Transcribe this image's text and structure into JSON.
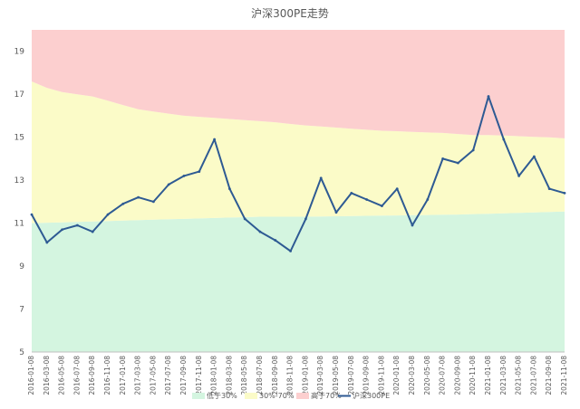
{
  "chart_data": {
    "type": "area",
    "title": "沪深300PE走势",
    "xlabel": "",
    "ylabel": "",
    "ylim": [
      5,
      20
    ],
    "yticks": [
      5,
      7,
      9,
      11,
      13,
      15,
      17,
      19
    ],
    "grid": false,
    "legend_position": "bottom",
    "x_labels": [
      "2016-01-08",
      "2016-03-08",
      "2016-05-08",
      "2016-07-08",
      "2016-09-08",
      "2016-11-08",
      "2017-01-08",
      "2017-03-08",
      "2017-05-08",
      "2017-07-08",
      "2017-09-08",
      "2017-11-08",
      "2018-01-08",
      "2018-03-08",
      "2018-05-08",
      "2018-07-08",
      "2018-09-08",
      "2018-11-08",
      "2019-01-08",
      "2019-03-08",
      "2019-05-08",
      "2019-07-08",
      "2019-09-08",
      "2019-11-08",
      "2020-01-08",
      "2020-03-08",
      "2020-05-08",
      "2020-07-08",
      "2020-09-08",
      "2020-11-08",
      "2021-01-08",
      "2021-03-08",
      "2021-05-08",
      "2021-07-08",
      "2021-09-08",
      "2021-11-08"
    ],
    "bands": [
      {
        "name": "低于30%",
        "color": "#d4f5e0",
        "values": [
          11.0,
          11.02,
          11.04,
          11.06,
          11.08,
          11.1,
          11.12,
          11.14,
          11.16,
          11.18,
          11.2,
          11.22,
          11.24,
          11.26,
          11.28,
          11.3,
          11.3,
          11.3,
          11.3,
          11.31,
          11.32,
          11.33,
          11.34,
          11.35,
          11.36,
          11.37,
          11.38,
          11.39,
          11.4,
          11.42,
          11.44,
          11.46,
          11.48,
          11.5,
          11.52,
          11.54
        ]
      },
      {
        "name": "30%-70%",
        "color": "#fbfbc8",
        "values": [
          17.6,
          17.3,
          17.1,
          17.0,
          16.9,
          16.7,
          16.5,
          16.3,
          16.2,
          16.1,
          16.0,
          15.95,
          15.9,
          15.85,
          15.8,
          15.75,
          15.7,
          15.62,
          15.55,
          15.5,
          15.45,
          15.4,
          15.35,
          15.3,
          15.28,
          15.25,
          15.22,
          15.2,
          15.15,
          15.1,
          15.1,
          15.08,
          15.05,
          15.02,
          15.0,
          14.95
        ]
      },
      {
        "name": "高于70%",
        "color": "#fccfcf",
        "values": [
          20,
          20,
          20,
          20,
          20,
          20,
          20,
          20,
          20,
          20,
          20,
          20,
          20,
          20,
          20,
          20,
          20,
          20,
          20,
          20,
          20,
          20,
          20,
          20,
          20,
          20,
          20,
          20,
          20,
          20,
          20,
          20,
          20,
          20,
          20,
          20
        ]
      }
    ],
    "series": [
      {
        "name": "沪深300PE",
        "color": "#2e5a93",
        "values": [
          11.4,
          10.1,
          10.7,
          10.9,
          10.6,
          11.4,
          11.9,
          12.2,
          12.0,
          12.8,
          13.2,
          13.4,
          14.9,
          12.6,
          11.2,
          10.6,
          10.2,
          9.7,
          11.2,
          13.1,
          11.5,
          12.4,
          12.1,
          11.8,
          12.6,
          10.9,
          12.1,
          14.0,
          13.8,
          14.4,
          16.9,
          14.9,
          13.2,
          14.1,
          12.6,
          12.4
        ]
      }
    ]
  }
}
